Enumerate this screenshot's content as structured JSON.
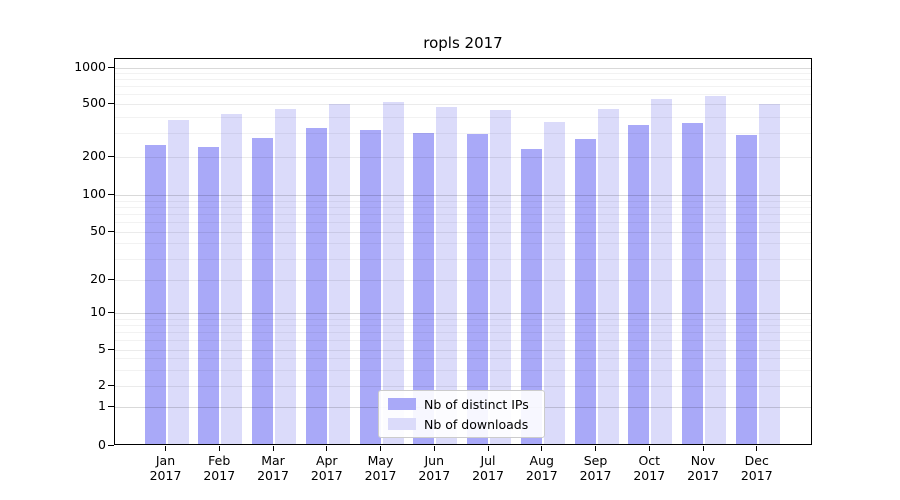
{
  "chart_data": {
    "type": "bar",
    "title": "ropls 2017",
    "x_categories": [
      "Jan",
      "Feb",
      "Mar",
      "Apr",
      "May",
      "Jun",
      "Jul",
      "Aug",
      "Sep",
      "Oct",
      "Nov",
      "Dec"
    ],
    "x_sublabel": "2017",
    "series": [
      {
        "name": "Nb of distinct IPs",
        "color": "#a9a9f8",
        "values": [
          235,
          230,
          265,
          320,
          305,
          293,
          285,
          220,
          264,
          333,
          344,
          281
        ]
      },
      {
        "name": "Nb of downloads",
        "color": "#dbdbfa",
        "values": [
          362,
          403,
          442,
          480,
          502,
          460,
          430,
          350,
          442,
          530,
          553,
          477
        ]
      }
    ],
    "y_axis": {
      "scale": "symlog",
      "tick_values": [
        0,
        1,
        2,
        5,
        10,
        20,
        50,
        100,
        200,
        500,
        1000
      ],
      "tick_labels": [
        "0",
        "1",
        "2",
        "5",
        "10",
        "20",
        "50",
        "100",
        "200",
        "500",
        "1000"
      ],
      "ylim": [
        0,
        1150
      ],
      "grid": true
    },
    "legend_position": "lower center"
  }
}
